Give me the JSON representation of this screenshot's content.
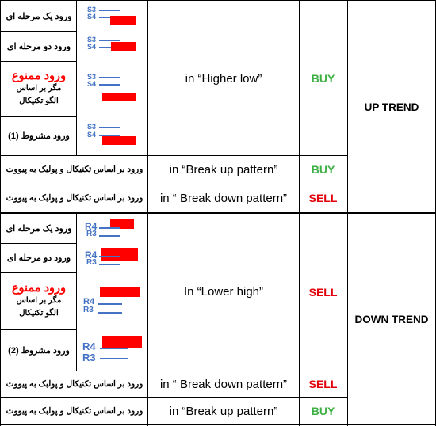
{
  "up_trend": {
    "label": "UP TREND",
    "rows": [
      {
        "entry": "ورود یک مرحله ای",
        "levels": [
          "S3",
          "S4"
        ]
      },
      {
        "entry": "ورود دو مرحله ای",
        "levels": [
          "S3",
          "S4"
        ]
      },
      {
        "entry_forbidden": "ورود ممنوع",
        "sub1": "مگر بر اساس",
        "sub2": "الگو تکنیکال",
        "levels": [
          "S3",
          "S4"
        ]
      },
      {
        "entry": "ورود مشروط (1)",
        "levels": [
          "S3",
          "S4"
        ]
      }
    ],
    "group_condition": "in  “Higher low”",
    "group_signal": "BUY",
    "extra": [
      {
        "entry": "ورود بر اساس تکنیکال و پولبک به پیووت",
        "condition": "in  “Break up pattern”",
        "signal": "BUY"
      },
      {
        "entry": "ورود بر اساس تکنیکال و پولبک به پیووت",
        "condition": "in  “ Break down pattern”",
        "signal": "SELL"
      }
    ]
  },
  "down_trend": {
    "label": "DOWN TREND",
    "rows": [
      {
        "entry": "ورود یک مرحله ای",
        "levels": [
          "R4",
          "R3"
        ]
      },
      {
        "entry": "ورود دو مرحله ای",
        "levels": [
          "R4",
          "R3"
        ]
      },
      {
        "entry_forbidden": "ورود ممنوع",
        "sub1": "مگر بر اساس",
        "sub2": "الگو تکنیکال",
        "levels": [
          "R4",
          "R3"
        ]
      },
      {
        "entry": "ورود مشروط (2)",
        "levels": [
          "R4",
          "R3"
        ]
      }
    ],
    "group_condition": "In  “Lower high”",
    "group_signal": "SELL",
    "extra": [
      {
        "entry": "ورود بر اساس تکنیکال و پولبک به پیووت",
        "condition": "in “ Break down pattern”",
        "signal": "SELL"
      },
      {
        "entry": "ورود بر اساس تکنیکال و پولبک به پیووت",
        "condition": "in  “Break up pattern”",
        "signal": "BUY"
      }
    ]
  },
  "colors": {
    "buy": "#3cb043",
    "sell": "#e3000b",
    "level_blue": "#4472c4",
    "forbidden_red": "#ff0000",
    "marker_red": "#ff0000"
  }
}
